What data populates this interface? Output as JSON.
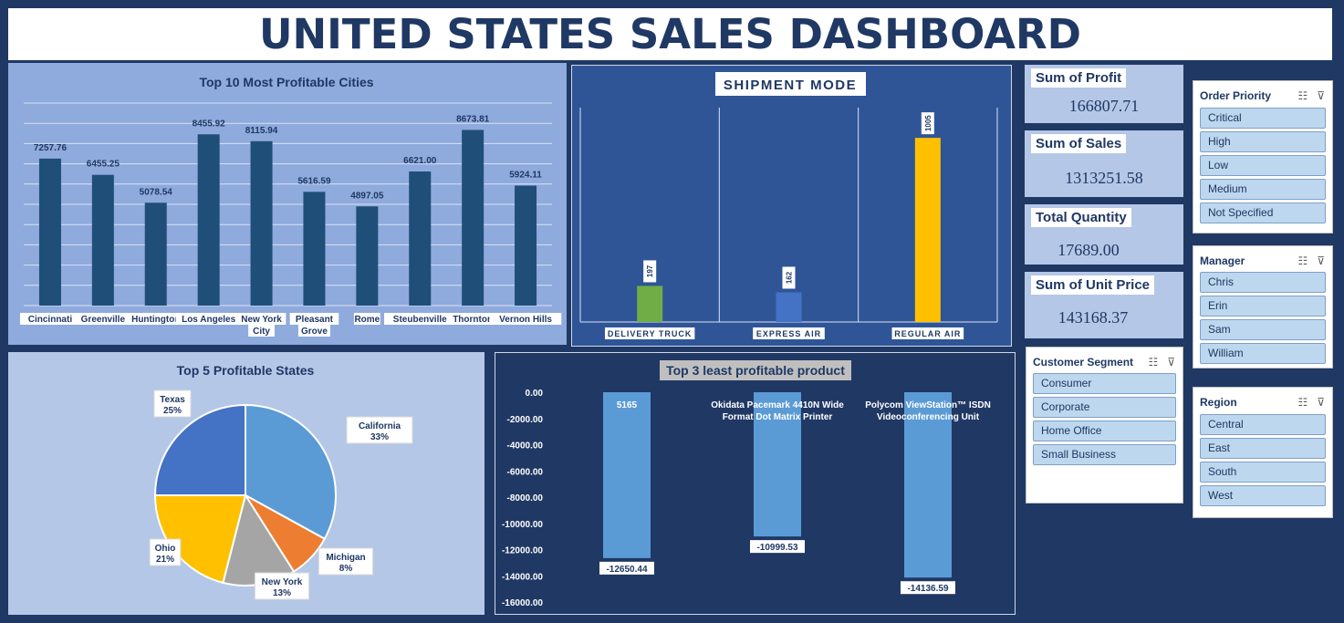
{
  "header": {
    "title": "UNITED STATES SALES DASHBOARD"
  },
  "kpis": [
    {
      "label": "Sum of Profit",
      "value": "166807.71"
    },
    {
      "label": "Sum of Sales",
      "value": "1313251.58"
    },
    {
      "label": "Total Quantity",
      "value": "17689.00"
    },
    {
      "label": "Sum of Unit Price",
      "value": "143168.37"
    }
  ],
  "slicers": {
    "order_priority": {
      "title": "Order Priority",
      "items": [
        "Critical",
        "High",
        "Low",
        "Medium",
        "Not Specified"
      ]
    },
    "manager": {
      "title": "Manager",
      "items": [
        "Chris",
        "Erin",
        "Sam",
        "William"
      ]
    },
    "customer_segment": {
      "title": "Customer Segment",
      "items": [
        "Consumer",
        "Corporate",
        "Home Office",
        "Small Business"
      ]
    },
    "region": {
      "title": "Region",
      "items": [
        "Central",
        "East",
        "South",
        "West"
      ]
    }
  },
  "icons": {
    "multiselect": "multi-select-icon",
    "clear_filter": "clear-filter-icon"
  },
  "colors": {
    "background": "#1f3864",
    "bar_dark": "#1f4e79",
    "bar_light": "#5b9bd5",
    "green": "#70ad47",
    "blue": "#4472c4",
    "gold": "#ffc000"
  },
  "chart_data": [
    {
      "type": "bar",
      "title": "Top 10 Most Profitable Cities",
      "categories": [
        "Cincinnati",
        "Greenville",
        "Huntington",
        "Los Angeles",
        "New York City",
        "Pleasant Grove",
        "Rome",
        "Steubenville",
        "Thornton",
        "Vernon Hills"
      ],
      "category_lines": [
        [
          "Cincinnati"
        ],
        [
          "Greenville"
        ],
        [
          "Huntington"
        ],
        [
          "Los Angeles"
        ],
        [
          "New York",
          "City"
        ],
        [
          "Pleasant",
          "Grove"
        ],
        [
          "Rome"
        ],
        [
          "Steubenville"
        ],
        [
          "Thornton"
        ],
        [
          "Vernon Hills"
        ]
      ],
      "values": [
        7257.76,
        6455.25,
        5078.54,
        8455.92,
        8115.94,
        5616.59,
        4897.05,
        6621.0,
        8673.81,
        5924.11
      ],
      "labels": [
        "7257.76",
        "6455.25",
        "5078.54",
        "8455.92",
        "8115.94",
        "5616.59",
        "4897.05",
        "6621.00",
        "8673.81",
        "5924.11"
      ],
      "ylim": [
        0,
        10000
      ],
      "grid": true,
      "color": "#1f4e79"
    },
    {
      "type": "bar",
      "title": "SHIPMENT MODE",
      "categories": [
        "DELIVERY TRUCK",
        "EXPRESS AIR",
        "REGULAR AIR"
      ],
      "values": [
        197,
        162,
        1005
      ],
      "labels": [
        "197",
        "162",
        "1005"
      ],
      "colors": [
        "#70ad47",
        "#4472c4",
        "#ffc000"
      ],
      "ylim": [
        0,
        1170
      ]
    },
    {
      "type": "pie",
      "title": "Top 5 Profitable States",
      "slices": [
        {
          "name": "California",
          "percent": 33,
          "label": "33%",
          "color": "#5b9bd5"
        },
        {
          "name": "Michigan",
          "percent": 8,
          "label": "8%",
          "color": "#ed7d31"
        },
        {
          "name": "New York",
          "percent": 13,
          "label": "13%",
          "color": "#a5a5a5"
        },
        {
          "name": "Ohio",
          "percent": 21,
          "label": "21%",
          "color": "#ffc000"
        },
        {
          "name": "Texas",
          "percent": 25,
          "label": "25%",
          "color": "#4472c4"
        }
      ]
    },
    {
      "type": "bar",
      "title": "Top 3 least profitable product",
      "categories": [
        "5165",
        "Okidata Pacemark 4410N Wide Format Dot Matrix Printer",
        "Polycom ViewStation™ ISDN Videoconferencing Unit"
      ],
      "category_lines": [
        [
          "5165"
        ],
        [
          "Okidata Pacemark 4410N Wide",
          "Format Dot Matrix Printer"
        ],
        [
          "Polycom ViewStation™ ISDN",
          "Videoconferencing Unit"
        ]
      ],
      "values": [
        -12650.44,
        -10999.53,
        -14136.59
      ],
      "labels": [
        "-12650.44",
        "-10999.53",
        "-14136.59"
      ],
      "yticks": [
        "0.00",
        "-2000.00",
        "-4000.00",
        "-6000.00",
        "-8000.00",
        "-10000.00",
        "-12000.00",
        "-14000.00",
        "-16000.00"
      ],
      "ylim": [
        -16000,
        0
      ],
      "color": "#5b9bd5"
    }
  ]
}
